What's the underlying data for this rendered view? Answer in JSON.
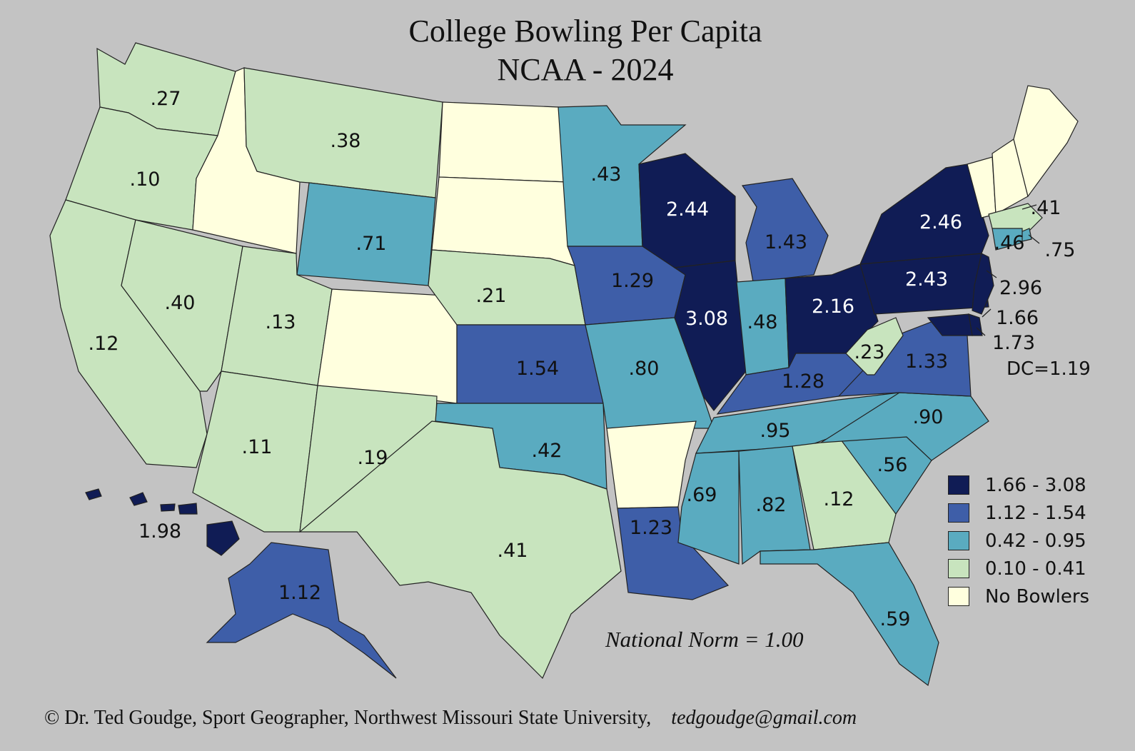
{
  "title": "College Bowling Per Capita",
  "subtitle": "NCAA - 2024",
  "national_norm": "National Norm = 1.00",
  "dc_label": "DC=1.19",
  "footer": {
    "credit": "© Dr. Ted Goudge, Sport Geographer, Northwest Missouri State University,",
    "email": "tedgoudge@gmail.com"
  },
  "colors": {
    "class_1": "#101c55",
    "class_2": "#3e5ea8",
    "class_3": "#5aabc0",
    "class_4": "#c8e4be",
    "class_5": "#ffffde",
    "background": "#c3c3c3"
  },
  "legend": [
    {
      "label": "1.66 - 3.08",
      "color": "#101c55"
    },
    {
      "label": "1.12 - 1.54",
      "color": "#3e5ea8"
    },
    {
      "label": "0.42 - 0.95",
      "color": "#5aabc0"
    },
    {
      "label": "0.10 - 0.41",
      "color": "#c8e4be"
    },
    {
      "label": "No Bowlers",
      "color": "#ffffde"
    }
  ],
  "states": [
    {
      "name": "Washington",
      "value": ".27"
    },
    {
      "name": "Oregon",
      "value": ".10"
    },
    {
      "name": "California",
      "value": ".12"
    },
    {
      "name": "Nevada",
      "value": ".40"
    },
    {
      "name": "Idaho",
      "value": ""
    },
    {
      "name": "Montana",
      "value": ".38"
    },
    {
      "name": "Wyoming",
      "value": ".71"
    },
    {
      "name": "Utah",
      "value": ".13"
    },
    {
      "name": "Arizona",
      "value": ".11"
    },
    {
      "name": "Colorado",
      "value": ""
    },
    {
      "name": "New Mexico",
      "value": ".19"
    },
    {
      "name": "North Dakota",
      "value": ""
    },
    {
      "name": "South Dakota",
      "value": ""
    },
    {
      "name": "Nebraska",
      "value": ".21"
    },
    {
      "name": "Kansas",
      "value": "1.54"
    },
    {
      "name": "Oklahoma",
      "value": ".42"
    },
    {
      "name": "Texas",
      "value": ".41"
    },
    {
      "name": "Minnesota",
      "value": ".43"
    },
    {
      "name": "Iowa",
      "value": "1.29"
    },
    {
      "name": "Missouri",
      "value": ".80"
    },
    {
      "name": "Arkansas",
      "value": ""
    },
    {
      "name": "Louisiana",
      "value": "1.23"
    },
    {
      "name": "Wisconsin",
      "value": "2.44"
    },
    {
      "name": "Illinois",
      "value": "3.08"
    },
    {
      "name": "Michigan",
      "value": "1.43"
    },
    {
      "name": "Indiana",
      "value": ".48"
    },
    {
      "name": "Ohio",
      "value": "2.16"
    },
    {
      "name": "Kentucky",
      "value": "1.28"
    },
    {
      "name": "Tennessee",
      "value": ".95"
    },
    {
      "name": "Mississippi",
      "value": ".69"
    },
    {
      "name": "Alabama",
      "value": ".82"
    },
    {
      "name": "Georgia",
      "value": ".12"
    },
    {
      "name": "Florida",
      "value": ".59"
    },
    {
      "name": "South Carolina",
      "value": ".56"
    },
    {
      "name": "North Carolina",
      "value": ".90"
    },
    {
      "name": "Virginia",
      "value": "1.33"
    },
    {
      "name": "West Virginia",
      "value": ".23"
    },
    {
      "name": "Pennsylvania",
      "value": "2.43"
    },
    {
      "name": "New York",
      "value": "2.46"
    },
    {
      "name": "Vermont",
      "value": ""
    },
    {
      "name": "New Hampshire",
      "value": ""
    },
    {
      "name": "Maine",
      "value": ""
    },
    {
      "name": "Massachusetts",
      "value": ".41"
    },
    {
      "name": "Rhode Island",
      "value": ".75"
    },
    {
      "name": "Connecticut",
      "value": ".46"
    },
    {
      "name": "New Jersey",
      "value": "2.96"
    },
    {
      "name": "Delaware",
      "value": "1.66"
    },
    {
      "name": "Maryland",
      "value": "1.73"
    },
    {
      "name": "Alaska",
      "value": "1.12"
    },
    {
      "name": "Hawaii",
      "value": "1.98"
    }
  ]
}
